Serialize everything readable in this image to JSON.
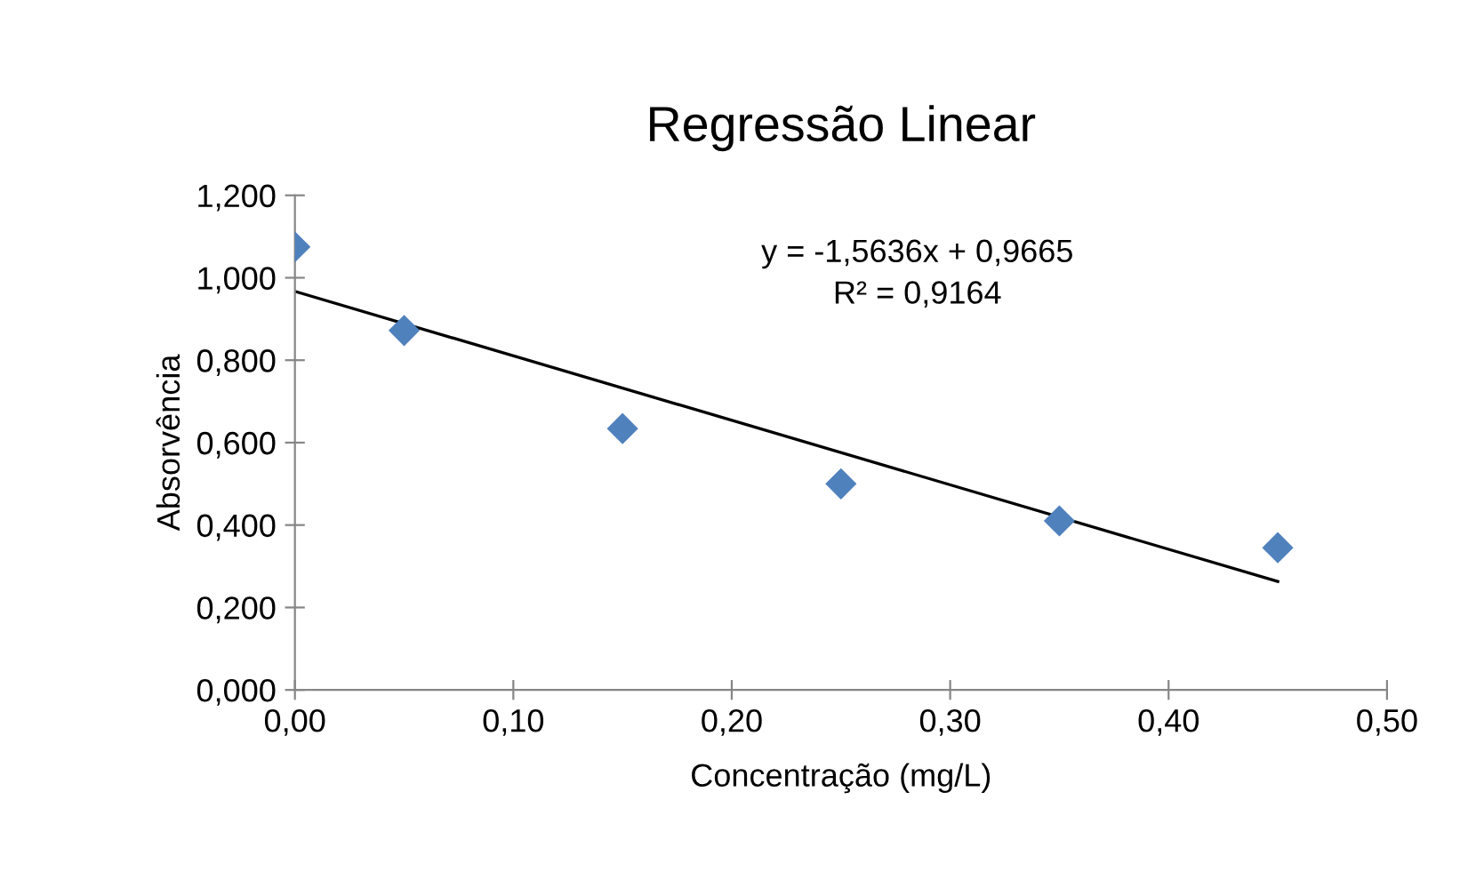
{
  "chart_data": {
    "type": "scatter",
    "title": "Regressão Linear",
    "xlabel": "Concentração (mg/L)",
    "ylabel": "Absorvência",
    "annotations": [
      "y = -1,5636x + 0,9665\nR² = 0,9164"
    ],
    "series": [
      {
        "color": "#4f81bd",
        "marker": "diamond",
        "x": [
          0,
          0.05,
          0.15,
          0.25,
          0.35,
          0.45
        ],
        "values": [
          1.075,
          0.872,
          0.634,
          0.5,
          0.41,
          0.345
        ]
      },
      {
        "type": "line",
        "color": "#000000",
        "marker": "none",
        "x": [
          0,
          0.45
        ],
        "values": [
          0.967,
          0.263
        ]
      }
    ],
    "xlim": [
      0,
      0.5
    ],
    "ylim": [
      0,
      1.2
    ],
    "xticks": [
      {
        "value": 0,
        "label": "0,00"
      },
      {
        "value": 0.1,
        "label": "0,10"
      },
      {
        "value": 0.2,
        "label": "0,20"
      },
      {
        "value": 0.3,
        "label": "0,30"
      },
      {
        "value": 0.4,
        "label": "0,40"
      },
      {
        "value": 0.5,
        "label": "0,50"
      }
    ],
    "yticks": [
      {
        "value": 0,
        "label": "0,000"
      },
      {
        "value": 0.2,
        "label": "0,200"
      },
      {
        "value": 0.4,
        "label": "0,400"
      },
      {
        "value": 0.6,
        "label": "0,600"
      },
      {
        "value": 0.8,
        "label": "0,800"
      },
      {
        "value": 1.0,
        "label": "1,000"
      },
      {
        "value": 1.2,
        "label": "1,200"
      }
    ],
    "grid": false,
    "legend": false
  }
}
